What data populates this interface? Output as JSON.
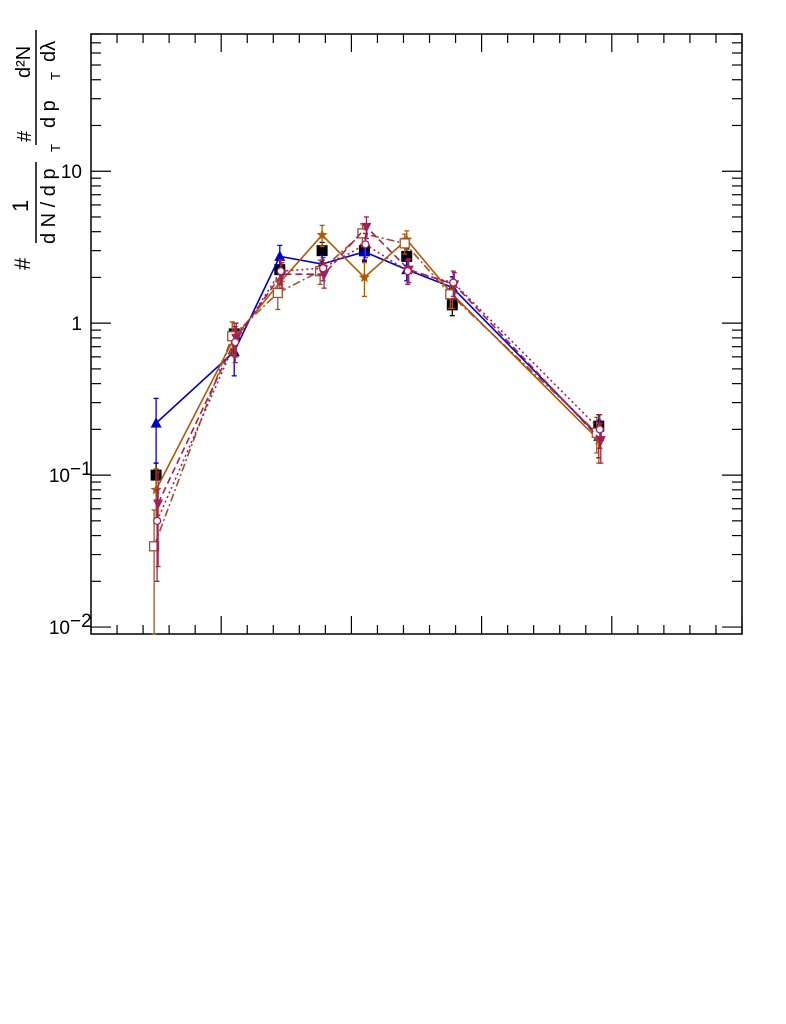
{
  "chart_data": {
    "type": "line",
    "title": "",
    "xlabel": "",
    "ylabel": {
      "prefix": "#",
      "numerator_left": "1",
      "denominator_left": "d N / d p",
      "sub_left": "T",
      "hash_right": "#",
      "numerator_right": "d²N",
      "denominator_right": "d p",
      "sub_right": "T",
      "lambda": "dλ"
    },
    "yscale": "log",
    "ylim": [
      0.009,
      80
    ],
    "xlim": [
      0,
      1
    ],
    "grid": false,
    "legend": "none",
    "yticks": [
      {
        "value": 0.01,
        "base": "10",
        "exp": "−2"
      },
      {
        "value": 0.1,
        "base": "10",
        "exp": "−1"
      },
      {
        "value": 1,
        "base": "1",
        "exp": ""
      },
      {
        "value": 10,
        "base": "10",
        "exp": ""
      }
    ],
    "x": [
      0.1,
      0.22,
      0.29,
      0.355,
      0.42,
      0.485,
      0.555,
      0.78
    ],
    "series": [
      {
        "color": "#000000",
        "marker": "square-filled",
        "line": "none",
        "values": [
          0.1,
          0.85,
          2.25,
          3.0,
          3.0,
          2.75,
          1.32,
          0.21
        ],
        "err": [
          0.02,
          0.15,
          0.35,
          0.4,
          0.4,
          0.35,
          0.2,
          0.04
        ]
      },
      {
        "color": "#0000cc",
        "marker": "triangle-up-filled",
        "line": "solid",
        "values": [
          0.22,
          0.65,
          2.75,
          2.45,
          2.95,
          2.25,
          1.72,
          0.18
        ],
        "err": [
          0.1,
          0.2,
          0.5,
          0.35,
          0.4,
          0.35,
          0.3,
          0.05
        ]
      },
      {
        "color": "#b35900",
        "marker": "star",
        "line": "solid",
        "values": [
          0.08,
          0.8,
          1.85,
          3.8,
          2.0,
          3.55,
          1.55,
          0.17
        ],
        "err": [
          0.03,
          0.2,
          0.35,
          0.6,
          0.5,
          0.5,
          0.3,
          0.05
        ]
      },
      {
        "color": "#a0522d",
        "marker": "square-open",
        "line": "dashdot",
        "values": [
          0.034,
          0.82,
          1.58,
          2.2,
          3.9,
          3.35,
          1.55,
          0.19
        ],
        "err": [
          0.025,
          0.2,
          0.35,
          0.4,
          0.6,
          0.5,
          0.3,
          0.05
        ]
      },
      {
        "color": "#a0205a",
        "marker": "triangle-down-filled",
        "line": "dashed",
        "values": [
          0.065,
          0.8,
          2.1,
          2.1,
          4.3,
          2.25,
          1.8,
          0.17
        ],
        "err": [
          0.04,
          0.2,
          0.4,
          0.4,
          0.7,
          0.4,
          0.35,
          0.05
        ]
      },
      {
        "color": "#a0205a",
        "marker": "circle-open",
        "line": "dotted",
        "values": [
          0.05,
          0.75,
          2.2,
          2.3,
          3.3,
          2.2,
          1.85,
          0.2
        ],
        "err": [
          0.03,
          0.2,
          0.4,
          0.4,
          0.6,
          0.4,
          0.35,
          0.05
        ]
      }
    ]
  }
}
